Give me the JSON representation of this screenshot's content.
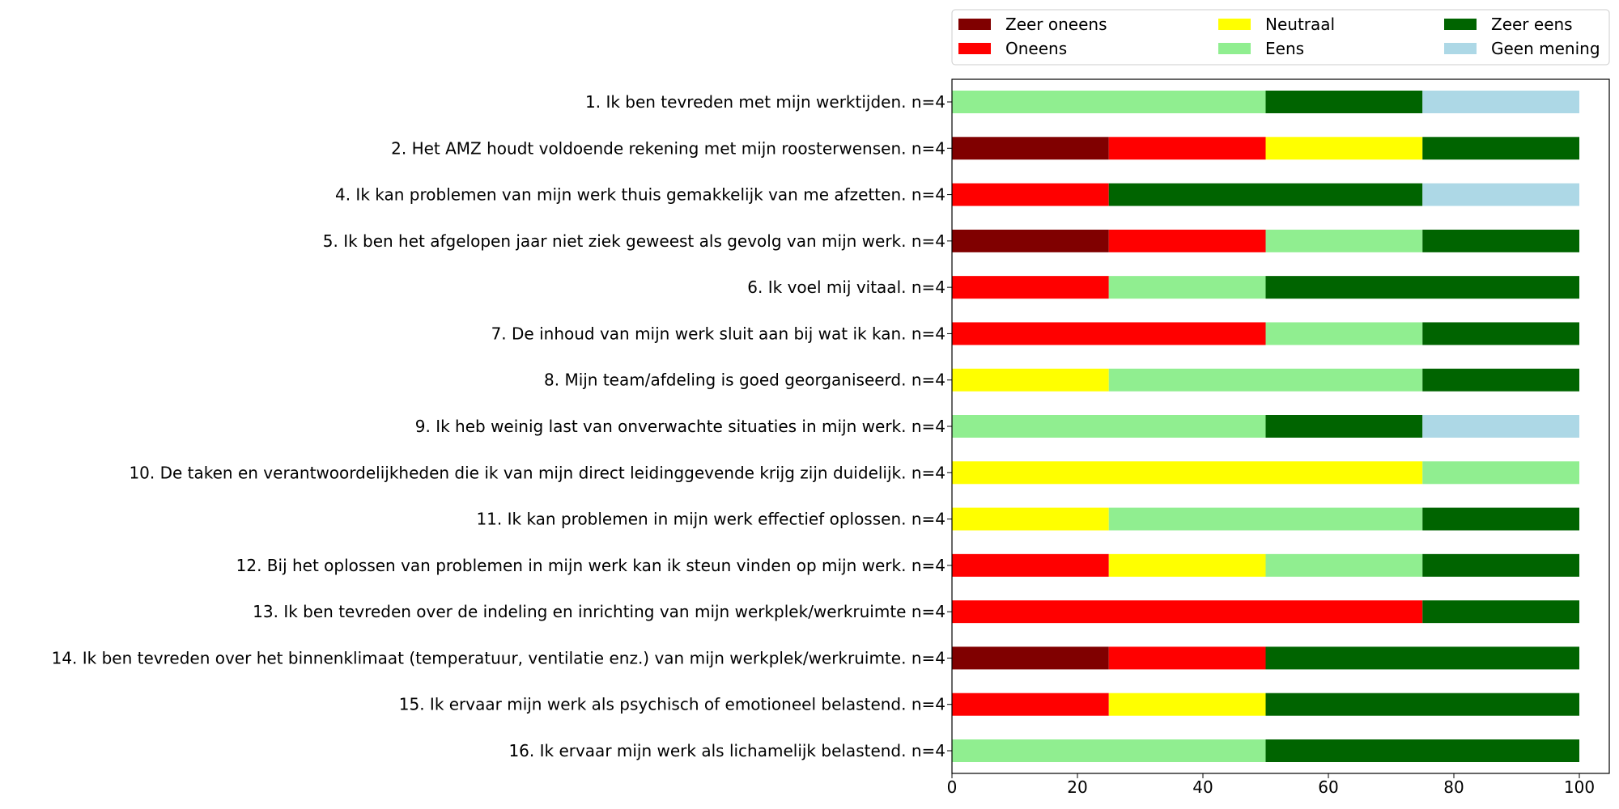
{
  "chart_data": {
    "type": "bar",
    "orientation": "horizontal",
    "stacked": true,
    "xlim": [
      0,
      100
    ],
    "x_ticks": [
      0,
      20,
      40,
      60,
      80,
      100
    ],
    "grid": false,
    "legend_position": "top",
    "categories": [
      "1. Ik ben tevreden met mijn werktijden. n=4",
      "2. Het AMZ houdt voldoende rekening met mijn roosterwensen. n=4",
      "4. Ik kan problemen van mijn werk thuis gemakkelijk van me afzetten. n=4",
      "5. Ik ben het afgelopen jaar niet ziek geweest als gevolg van mijn werk. n=4",
      "6. Ik voel mij vitaal. n=4",
      "7. De inhoud van mijn werk sluit aan bij wat ik kan. n=4",
      "8. Mijn team/afdeling is goed georganiseerd. n=4",
      "9. Ik heb weinig last van onverwachte situaties in mijn werk. n=4",
      "10. De taken en verantwoordelijkheden die ik van mijn direct leidinggevende krijg zijn duidelijk. n=4",
      "11. Ik kan problemen in mijn werk effectief oplossen. n=4",
      "12. Bij het oplossen van problemen in mijn werk kan ik steun vinden op mijn werk. n=4",
      "13. Ik ben tevreden over de indeling en inrichting van mijn werkplek/werkruimte n=4",
      "14. Ik ben tevreden over het binnenklimaat (temperatuur, ventilatie enz.) van mijn werkplek/werkruimte. n=4",
      "15. Ik ervaar mijn werk als psychisch of emotioneel belastend. n=4",
      "16. Ik ervaar mijn werk als lichamelijk belastend. n=4"
    ],
    "series": [
      {
        "name": "Zeer oneens",
        "color": "#800000",
        "values": [
          0,
          25,
          0,
          25,
          0,
          0,
          0,
          0,
          0,
          0,
          0,
          0,
          25,
          0,
          0
        ]
      },
      {
        "name": "Oneens",
        "color": "#ff0000",
        "values": [
          0,
          25,
          25,
          25,
          25,
          50,
          0,
          0,
          0,
          0,
          25,
          75,
          25,
          25,
          0
        ]
      },
      {
        "name": "Neutraal",
        "color": "#ffff00",
        "values": [
          0,
          25,
          0,
          0,
          0,
          0,
          25,
          0,
          75,
          25,
          25,
          0,
          0,
          25,
          0
        ]
      },
      {
        "name": "Eens",
        "color": "#90ee90",
        "values": [
          50,
          0,
          0,
          25,
          25,
          25,
          50,
          50,
          25,
          50,
          25,
          0,
          0,
          0,
          50
        ]
      },
      {
        "name": "Zeer eens",
        "color": "#006400",
        "values": [
          25,
          25,
          50,
          25,
          50,
          25,
          25,
          25,
          0,
          25,
          25,
          25,
          50,
          50,
          50
        ]
      },
      {
        "name": "Geen mening",
        "color": "#add8e6",
        "values": [
          25,
          0,
          25,
          0,
          0,
          0,
          0,
          25,
          0,
          0,
          0,
          0,
          0,
          0,
          0
        ]
      }
    ]
  }
}
